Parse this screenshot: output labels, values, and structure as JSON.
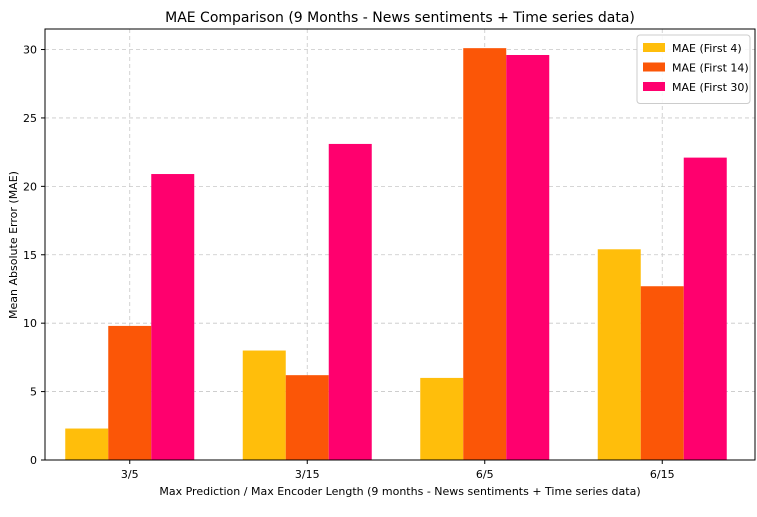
{
  "chart_data": {
    "type": "bar",
    "title": "MAE Comparison (9 Months - News sentiments + Time series data)",
    "xlabel": "Max Prediction / Max Encoder Length (9 months - News sentiments + Time series data)",
    "ylabel": "Mean Absolute Error (MAE)",
    "categories": [
      "3/5",
      "3/15",
      "6/5",
      "6/15"
    ],
    "ylim": [
      0,
      31.5
    ],
    "yticks": [
      0,
      5,
      10,
      15,
      20,
      25,
      30
    ],
    "grid": true,
    "legend_position": "top-right",
    "series": [
      {
        "name": "MAE (First 4)",
        "color": "#FFBE0B",
        "values": [
          2.3,
          8.0,
          6.0,
          15.4
        ]
      },
      {
        "name": "MAE (First 14)",
        "color": "#FB5607",
        "values": [
          9.8,
          6.2,
          30.1,
          12.7
        ]
      },
      {
        "name": "MAE (First 30)",
        "color": "#FF006E",
        "values": [
          20.9,
          23.1,
          29.6,
          22.1
        ]
      }
    ]
  }
}
